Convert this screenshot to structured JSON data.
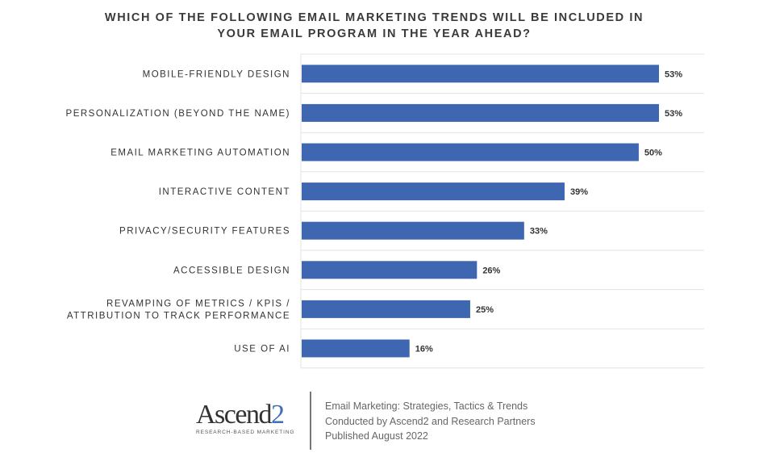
{
  "chart_data": {
    "type": "bar",
    "orientation": "horizontal",
    "title": [
      "WHICH OF THE FOLLOWING EMAIL MARKETING TRENDS WILL BE INCLUDED IN",
      "YOUR EMAIL PROGRAM IN THE YEAR AHEAD?"
    ],
    "categories": [
      [
        "MOBILE-FRIENDLY DESIGN"
      ],
      [
        "PERSONALIZATION (BEYOND THE NAME)"
      ],
      [
        "EMAIL MARKETING AUTOMATION"
      ],
      [
        "INTERACTIVE CONTENT"
      ],
      [
        "PRIVACY/SECURITY FEATURES"
      ],
      [
        "ACCESSIBLE DESIGN"
      ],
      [
        "REVAMPING OF METRICS / KPIS /",
        "ATTRIBUTION TO TRACK PERFORMANCE"
      ],
      [
        "USE OF AI"
      ]
    ],
    "values": [
      53,
      53,
      50,
      39,
      33,
      26,
      25,
      16
    ],
    "value_labels": [
      "53%",
      "53%",
      "50%",
      "39%",
      "33%",
      "26%",
      "25%",
      "16%"
    ],
    "unit": "%",
    "xlim": [
      0,
      60
    ],
    "grid": true,
    "bar_color": "#3f67b1"
  },
  "footer": {
    "logo": {
      "name": "Ascend",
      "digit": "2",
      "tagline": "RESEARCH-BASED MARKETING"
    },
    "source_lines": [
      "Email Marketing: Strategies, Tactics & Trends",
      "Conducted by Ascend2 and Research Partners",
      "Published August 2022"
    ]
  }
}
